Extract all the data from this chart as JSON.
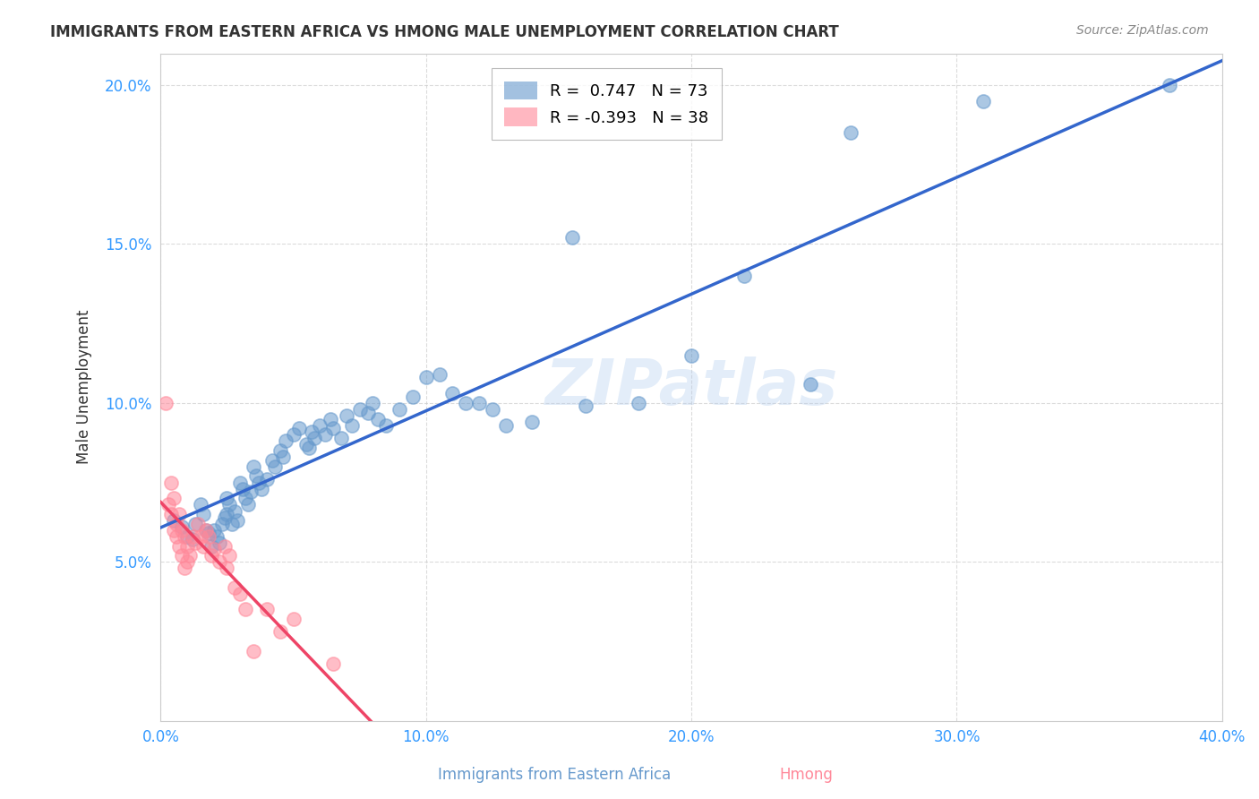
{
  "title": "IMMIGRANTS FROM EASTERN AFRICA VS HMONG MALE UNEMPLOYMENT CORRELATION CHART",
  "source": "Source: ZipAtlas.com",
  "xlabel_label": "Immigrants from Eastern Africa",
  "ylabel_label": "Male Unemployment",
  "watermark": "ZIPatlas",
  "legend_r1": "R =  0.747   N = 73",
  "legend_r2": "R = -0.393   N = 38",
  "blue_R": 0.747,
  "blue_N": 73,
  "pink_R": -0.393,
  "pink_N": 38,
  "xlim": [
    0.0,
    0.4
  ],
  "ylim": [
    0.0,
    0.21
  ],
  "xticks": [
    0.0,
    0.1,
    0.2,
    0.3,
    0.4
  ],
  "yticks": [
    0.05,
    0.1,
    0.15,
    0.2
  ],
  "xticklabels": [
    "0.0%",
    "10.0%",
    "20.0%",
    "30.0%",
    "40.0%"
  ],
  "yticklabels": [
    "5.0%",
    "10.0%",
    "15.0%",
    "20.0%"
  ],
  "blue_color": "#6699cc",
  "pink_color": "#ff8899",
  "blue_line_color": "#3366cc",
  "pink_line_color": "#ee4466",
  "grid_color": "#cccccc",
  "background_color": "#ffffff",
  "title_color": "#333333",
  "source_color": "#888888",
  "ytick_color": "#3399ff",
  "xtick_color": "#3399ff",
  "blue_scatter_x": [
    0.005,
    0.008,
    0.01,
    0.012,
    0.013,
    0.015,
    0.016,
    0.017,
    0.018,
    0.019,
    0.02,
    0.021,
    0.022,
    0.023,
    0.024,
    0.025,
    0.025,
    0.026,
    0.027,
    0.028,
    0.029,
    0.03,
    0.031,
    0.032,
    0.033,
    0.034,
    0.035,
    0.036,
    0.037,
    0.038,
    0.04,
    0.042,
    0.043,
    0.045,
    0.046,
    0.047,
    0.05,
    0.052,
    0.055,
    0.056,
    0.057,
    0.058,
    0.06,
    0.062,
    0.064,
    0.065,
    0.068,
    0.07,
    0.072,
    0.075,
    0.078,
    0.08,
    0.082,
    0.085,
    0.09,
    0.095,
    0.1,
    0.105,
    0.11,
    0.115,
    0.12,
    0.125,
    0.13,
    0.14,
    0.155,
    0.16,
    0.18,
    0.2,
    0.22,
    0.245,
    0.26,
    0.31,
    0.38
  ],
  "blue_scatter_y": [
    0.063,
    0.061,
    0.058,
    0.057,
    0.062,
    0.068,
    0.065,
    0.06,
    0.059,
    0.055,
    0.06,
    0.058,
    0.056,
    0.062,
    0.064,
    0.07,
    0.065,
    0.068,
    0.062,
    0.066,
    0.063,
    0.075,
    0.073,
    0.07,
    0.068,
    0.072,
    0.08,
    0.077,
    0.075,
    0.073,
    0.076,
    0.082,
    0.08,
    0.085,
    0.083,
    0.088,
    0.09,
    0.092,
    0.087,
    0.086,
    0.091,
    0.089,
    0.093,
    0.09,
    0.095,
    0.092,
    0.089,
    0.096,
    0.093,
    0.098,
    0.097,
    0.1,
    0.095,
    0.093,
    0.098,
    0.102,
    0.108,
    0.109,
    0.103,
    0.1,
    0.1,
    0.098,
    0.093,
    0.094,
    0.152,
    0.099,
    0.1,
    0.115,
    0.14,
    0.106,
    0.185,
    0.195,
    0.2
  ],
  "pink_scatter_x": [
    0.002,
    0.003,
    0.004,
    0.004,
    0.005,
    0.005,
    0.006,
    0.006,
    0.007,
    0.007,
    0.008,
    0.008,
    0.009,
    0.009,
    0.01,
    0.01,
    0.011,
    0.012,
    0.013,
    0.014,
    0.015,
    0.016,
    0.017,
    0.018,
    0.019,
    0.02,
    0.022,
    0.024,
    0.025,
    0.026,
    0.028,
    0.03,
    0.032,
    0.035,
    0.04,
    0.045,
    0.05,
    0.065
  ],
  "pink_scatter_y": [
    0.1,
    0.068,
    0.075,
    0.065,
    0.06,
    0.07,
    0.062,
    0.058,
    0.065,
    0.055,
    0.06,
    0.052,
    0.058,
    0.048,
    0.055,
    0.05,
    0.052,
    0.058,
    0.056,
    0.062,
    0.058,
    0.055,
    0.06,
    0.058,
    0.052,
    0.054,
    0.05,
    0.055,
    0.048,
    0.052,
    0.042,
    0.04,
    0.035,
    0.022,
    0.035,
    0.028,
    0.032,
    0.018
  ]
}
